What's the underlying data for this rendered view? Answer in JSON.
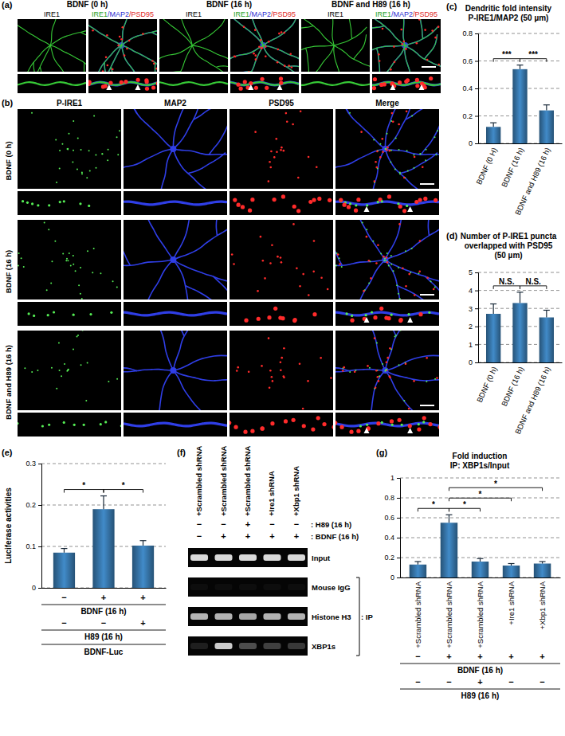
{
  "chart_data": [
    {
      "type": "bar",
      "panel_label": "(c)",
      "title": "Dendritic fold intensity",
      "subtitle": "P-IRE1/MAP2 (50 µm)",
      "categories": [
        "BDNF (0 H)",
        "BDNF (16 h)",
        "BDNF and H89 (16 h)"
      ],
      "values": [
        0.12,
        0.54,
        0.24
      ],
      "errors": [
        0.03,
        0.03,
        0.04
      ],
      "color": "#2f6592",
      "ylim": [
        0,
        0.8
      ],
      "yticks": [
        0,
        0.2,
        0.4,
        0.6,
        0.8
      ],
      "grid": true,
      "annotations": [
        {
          "between": [
            0,
            1
          ],
          "label": "***"
        },
        {
          "between": [
            1,
            2
          ],
          "label": "***"
        }
      ]
    },
    {
      "type": "bar",
      "panel_label": "(d)",
      "title": "Number of P-IRE1 puncta overlapped with PSD95",
      "subtitle": "(50 µm)",
      "categories": [
        "BDNF (0 h)",
        "BDNF (16 h)",
        "BDNF and H89 (16 h)"
      ],
      "values": [
        2.7,
        3.3,
        2.5
      ],
      "errors": [
        0.55,
        0.6,
        0.4
      ],
      "color": "#2f6592",
      "ylim": [
        0,
        5
      ],
      "yticks": [
        0,
        1,
        2,
        3,
        4,
        5
      ],
      "grid": true,
      "annotations": [
        {
          "between": [
            0,
            1
          ],
          "label": "N.S."
        },
        {
          "between": [
            1,
            2
          ],
          "label": "N.S."
        }
      ]
    },
    {
      "type": "bar",
      "panel_label": "(e)",
      "y_label": "Luciferase activities",
      "categories": [
        null,
        null,
        null
      ],
      "values": [
        0.085,
        0.19,
        0.102
      ],
      "errors": [
        0.01,
        0.032,
        0.012
      ],
      "color": "#2f6592",
      "ylim": [
        0,
        0.3
      ],
      "yticks": [
        0,
        0.1,
        0.2,
        0.3
      ],
      "grid": true,
      "annotations": [
        {
          "between": [
            0,
            1
          ],
          "label": "*"
        },
        {
          "between": [
            1,
            2
          ],
          "label": "*"
        }
      ],
      "conditions": [
        {
          "name": "BDNF (16 h)",
          "values": [
            "−",
            "+",
            "+"
          ]
        },
        {
          "name": "H89 (16 h)",
          "values": [
            "−",
            "−",
            "+"
          ]
        }
      ],
      "footer": "BDNF-Luc"
    },
    {
      "type": "bar",
      "panel_label": "(g)",
      "title": "Fold induction",
      "subtitle": "IP: XBP1s/Input",
      "categories": [
        "+Scrambled shRNA",
        "+Scrambled shRNA",
        "+Scrambled shRNA",
        "+Ire1 shRNA",
        "+Xbp1 shRNA"
      ],
      "values": [
        0.13,
        0.55,
        0.16,
        0.12,
        0.14
      ],
      "errors": [
        0.03,
        0.08,
        0.03,
        0.02,
        0.02
      ],
      "color": "#2f6592",
      "ylim": [
        0,
        1
      ],
      "yticks": [
        0,
        0.2,
        0.4,
        0.6,
        0.8,
        1
      ],
      "grid": true,
      "annotations": [
        {
          "between": [
            0,
            1
          ],
          "label": "*"
        },
        {
          "between": [
            1,
            2
          ],
          "label": "*"
        },
        {
          "between": [
            1,
            3
          ],
          "label": "*"
        },
        {
          "between": [
            1,
            4
          ],
          "label": "*"
        }
      ],
      "conditions": [
        {
          "name": "BDNF (16 h)",
          "values": [
            "−",
            "+",
            "+",
            "+",
            "+"
          ]
        },
        {
          "name": "H89 (16 h)",
          "values": [
            "−",
            "−",
            "+",
            "−",
            "−"
          ]
        }
      ]
    }
  ],
  "micrographs": {
    "a": {
      "panel_label": "(a)",
      "groups": [
        "BDNF (0 h)",
        "BDNF (16 h)",
        "BDNF and H89 (16 h)"
      ],
      "image_labels": [
        [
          {
            "text": "IRE1",
            "color": "#000000"
          }
        ],
        [
          {
            "text": "IRE1",
            "color": "#22a022"
          },
          {
            "text": "/MAP2",
            "color": "#2a2ad0"
          },
          {
            "text": "/PSD95",
            "color": "#e02020"
          }
        ]
      ]
    },
    "b": {
      "panel_label": "(b)",
      "conditions": [
        "BDNF (0 h)",
        "BDNF (16 h)",
        "BDNF and H89 (16 h)"
      ],
      "channels": [
        "P-IRE1",
        "MAP2",
        "PSD95",
        "Merge"
      ]
    }
  },
  "gel": {
    "panel_label": "(f)",
    "lanes": [
      "+Scrambled shRNA",
      "+Scrambled shRNA",
      "+Scrambled shRNA",
      "+Ire1 shRNA",
      "+Xbp1 shRNA"
    ],
    "conditions": [
      {
        "name": ": H89 (16 h)",
        "values": [
          "−",
          "−",
          "+",
          "−",
          "−"
        ]
      },
      {
        "name": ": BDNF (16 h)",
        "values": [
          "−",
          "+",
          "+",
          "+",
          "+"
        ]
      }
    ],
    "rows": [
      {
        "name": "Input",
        "intensity": [
          0.85,
          0.85,
          0.85,
          0.85,
          0.85
        ]
      },
      {
        "name": "Mouse IgG",
        "intensity": [
          0.05,
          0.05,
          0.05,
          0.05,
          0.05
        ]
      },
      {
        "name": "Histone H3",
        "intensity": [
          0.7,
          0.7,
          0.65,
          0.7,
          0.7
        ]
      },
      {
        "name": "XBP1s",
        "intensity": [
          0.12,
          0.8,
          0.3,
          0.25,
          0.22
        ]
      }
    ],
    "bracket": {
      "label": ": IP",
      "rows": [
        1,
        3
      ]
    }
  }
}
